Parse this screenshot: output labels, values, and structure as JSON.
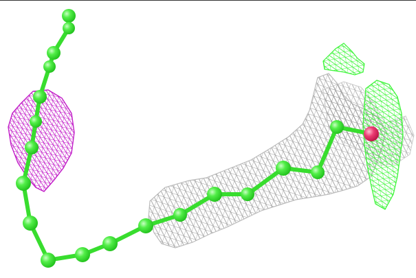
{
  "scene": {
    "background": "#ffffff",
    "frame_border": "#333333",
    "colors": {
      "carbon": "#39e632",
      "carbon_highlight": "#b9ffb3",
      "bond": "#38dd2e",
      "oxygen": "#e8336b",
      "density_map": "#b8b8b8",
      "positive_difference_map": "#3ef53a",
      "negative_difference_map": "#c21ec8"
    },
    "elements": {
      "atom_types": [
        "carbon",
        "oxygen"
      ],
      "mesh_types": [
        "electron-density-mesh",
        "positive-difference-mesh",
        "negative-difference-mesh"
      ]
    }
  }
}
